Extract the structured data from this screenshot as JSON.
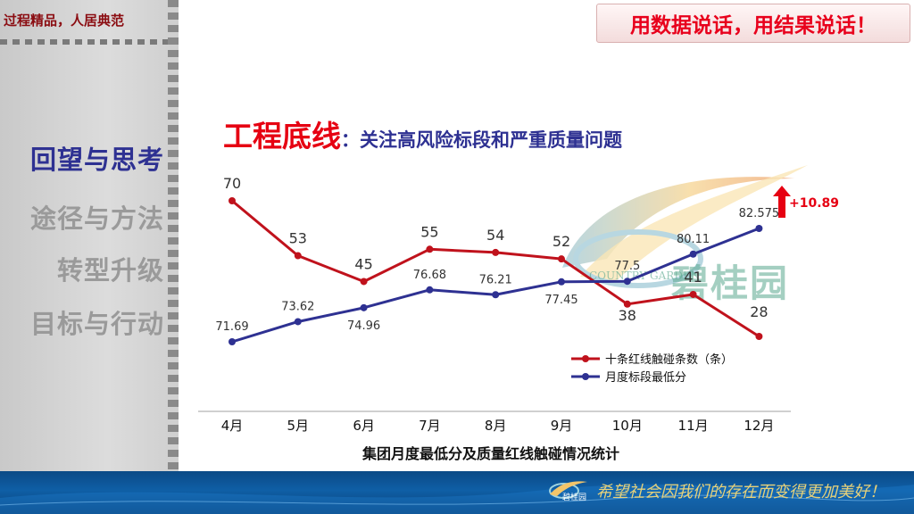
{
  "header": {
    "left_slogan": "过程精品，人居典范",
    "banner": "用数据说话，用结果说话！"
  },
  "sidebar": {
    "items": [
      {
        "label": "回望与思考",
        "active": true
      },
      {
        "label": "途径与方法",
        "active": false
      },
      {
        "label": "转型升级",
        "active": false
      },
      {
        "label": "目标与行动",
        "active": false
      }
    ]
  },
  "title": {
    "main": "工程底线",
    "sub": "：关注高风险标段和严重质量问题"
  },
  "watermark": {
    "name": "碧桂园",
    "en": "COUNTRY GARDEN"
  },
  "callout": {
    "text": "+10.89",
    "color": "#e60012"
  },
  "footer": {
    "brand": "碧桂园",
    "slogan": "希望社会因我们的存在而变得更加美好！"
  },
  "colors": {
    "red_series": "#c0121c",
    "blue_series": "#2e3192",
    "accent": "#e60012"
  },
  "chart_data": {
    "type": "line",
    "title": "集团月度最低分及质量红线触碰情况统计",
    "categories": [
      "4月",
      "5月",
      "6月",
      "7月",
      "8月",
      "9月",
      "10月",
      "11月",
      "12月"
    ],
    "series": [
      {
        "name": "十条红线触碰条数（条）",
        "color": "#c0121c",
        "values": [
          70,
          53,
          45,
          55,
          54,
          52,
          38,
          41,
          28
        ],
        "labels": [
          "70",
          "53",
          "45",
          "55",
          "54",
          "52",
          "38",
          "41",
          "28"
        ]
      },
      {
        "name": "月度标段最低分",
        "color": "#2e3192",
        "values": [
          71.69,
          73.62,
          74.96,
          76.68,
          76.21,
          77.45,
          77.5,
          80.11,
          82.575
        ],
        "labels": [
          "71.69",
          "73.62",
          "74.96",
          "76.68",
          "76.21",
          "77.45",
          "77.5",
          "80.11",
          "82.575"
        ]
      }
    ],
    "legend_position": "bottom-right",
    "grid": false
  }
}
